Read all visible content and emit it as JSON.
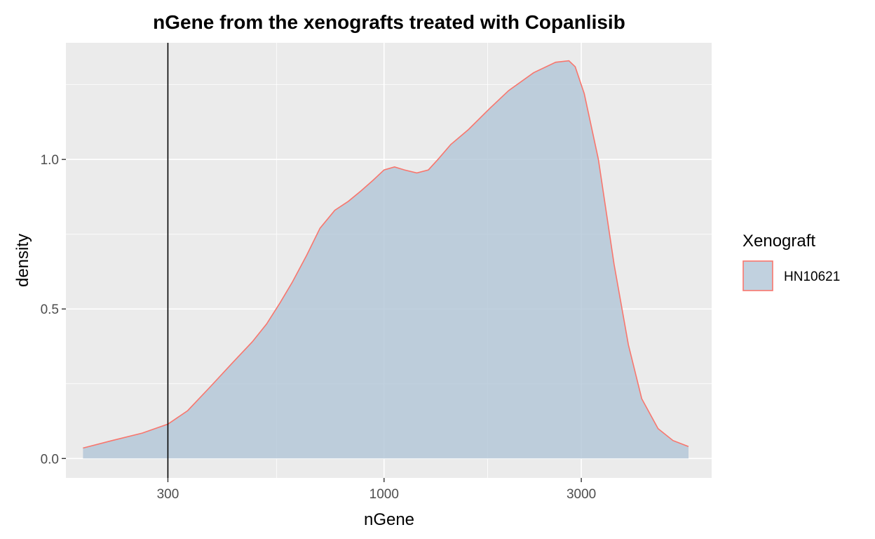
{
  "chart_data": {
    "type": "area",
    "title": "nGene from the xenografts treated with Copanlisib",
    "xlabel": "nGene",
    "ylabel": "density",
    "x_scale": "log10",
    "xlim": [
      170,
      6200
    ],
    "ylim": [
      -0.065,
      1.39
    ],
    "x_ticks": [
      300,
      1000,
      3000
    ],
    "x_tick_labels": [
      "300",
      "1000",
      "3000"
    ],
    "x_minor_ticks": [
      550,
      1780
    ],
    "y_ticks": [
      0.0,
      0.5,
      1.0
    ],
    "y_tick_labels": [
      "0.0",
      "0.5",
      "1.0"
    ],
    "y_minor_ticks": [
      0.25,
      0.75,
      1.25
    ],
    "grid": true,
    "vline": {
      "x": 300,
      "color": "#000000"
    },
    "legend": {
      "title": "Xenograft",
      "position": "right"
    },
    "series": [
      {
        "name": "HN10621",
        "fill": "#B0C4D6",
        "fill_opacity": 0.78,
        "stroke": "#F8766D",
        "x": [
          187,
          220,
          260,
          300,
          335,
          380,
          430,
          480,
          520,
          560,
          600,
          650,
          700,
          760,
          820,
          880,
          940,
          1000,
          1060,
          1120,
          1200,
          1280,
          1350,
          1450,
          1600,
          1800,
          2000,
          2300,
          2600,
          2800,
          2900,
          3050,
          3300,
          3600,
          3900,
          4200,
          4600,
          5000,
          5450
        ],
        "y": [
          0.035,
          0.06,
          0.085,
          0.115,
          0.16,
          0.24,
          0.32,
          0.39,
          0.45,
          0.52,
          0.59,
          0.68,
          0.77,
          0.83,
          0.86,
          0.895,
          0.93,
          0.965,
          0.975,
          0.965,
          0.955,
          0.965,
          1.0,
          1.05,
          1.1,
          1.17,
          1.23,
          1.29,
          1.325,
          1.33,
          1.31,
          1.22,
          1.0,
          0.65,
          0.38,
          0.2,
          0.1,
          0.06,
          0.04
        ]
      }
    ]
  }
}
